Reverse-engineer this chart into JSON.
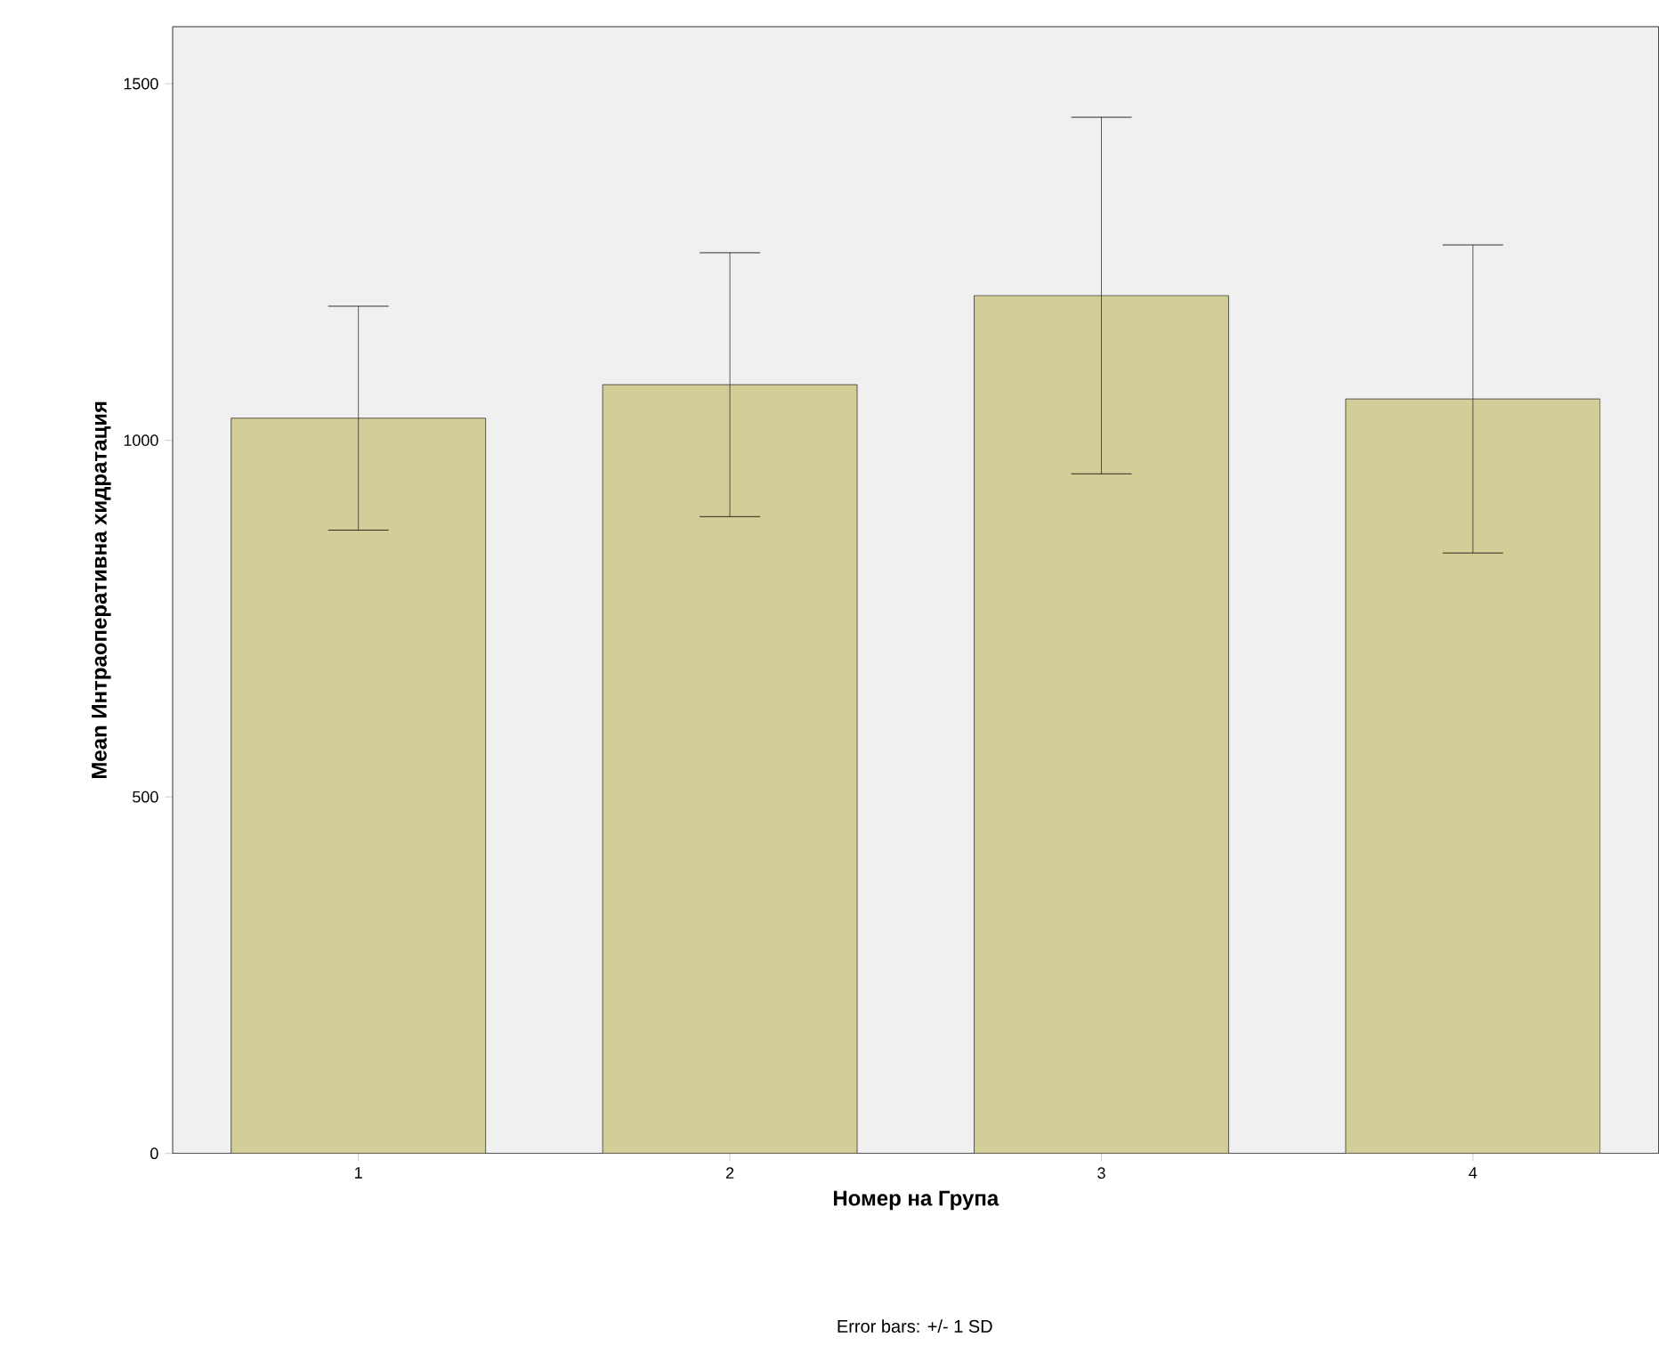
{
  "chart_data": {
    "type": "bar",
    "xlabel": "Номер на Група",
    "ylabel": "Mean Интраоперативна хидратация",
    "categories": [
      "1",
      "2",
      "3",
      "4"
    ],
    "values": [
      1031,
      1078,
      1203,
      1058
    ],
    "errors": [
      157,
      185,
      250,
      216
    ],
    "color": "#d3ce97",
    "ylim": [
      0,
      1580
    ],
    "yticks": [
      0,
      500,
      1000,
      1500
    ],
    "annotations": [
      "Error bars: +/- 1 SD"
    ]
  }
}
